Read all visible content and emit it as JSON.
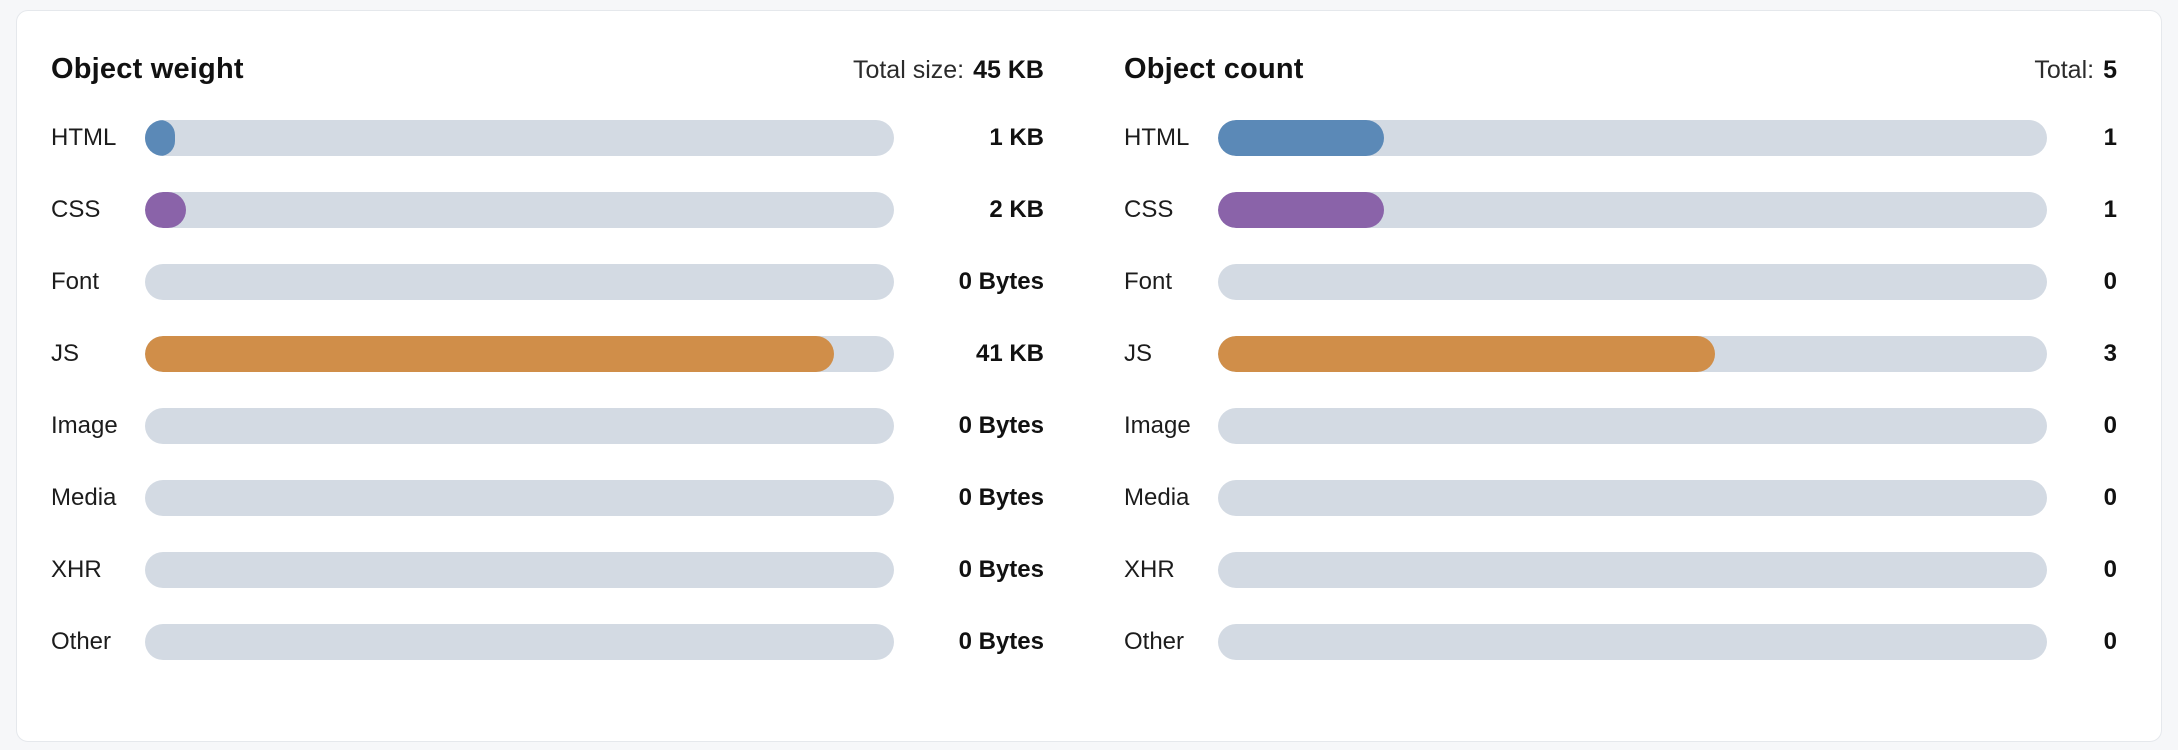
{
  "colors": {
    "html_blue": "#5b89b7",
    "css_purple": "#8a63a9",
    "js_orange": "#d08e49",
    "bar_track": "#d3dae3",
    "card_background": "#ffffff",
    "card_border": "#e5e8ec",
    "page_background": "#f6f7f9",
    "text": "#111111"
  },
  "chart_data": [
    {
      "type": "bar",
      "title": "Object weight",
      "total_label": "Total size:",
      "total_value": "45 KB",
      "categories": [
        "HTML",
        "CSS",
        "Font",
        "JS",
        "Image",
        "Media",
        "XHR",
        "Other"
      ],
      "values_kb": [
        1,
        2,
        0,
        41,
        0,
        0,
        0,
        0
      ],
      "value_labels": [
        "1 KB",
        "2 KB",
        "0 Bytes",
        "41 KB",
        "0 Bytes",
        "0 Bytes",
        "0 Bytes",
        "0 Bytes"
      ],
      "percents": [
        4,
        5.5,
        0,
        92,
        0,
        0,
        0,
        0
      ],
      "bar_colors": [
        "#5b89b7",
        "#8a63a9",
        null,
        "#d08e49",
        null,
        null,
        null,
        null
      ],
      "track_color": "#d3dae3",
      "orientation": "horizontal",
      "grid": false,
      "legend": "none"
    },
    {
      "type": "bar",
      "title": "Object count",
      "total_label": "Total:",
      "total_value": "5",
      "categories": [
        "HTML",
        "CSS",
        "Font",
        "JS",
        "Image",
        "Media",
        "XHR",
        "Other"
      ],
      "values": [
        1,
        1,
        0,
        3,
        0,
        0,
        0,
        0
      ],
      "value_labels": [
        "1",
        "1",
        "0",
        "3",
        "0",
        "0",
        "0",
        "0"
      ],
      "percents": [
        20,
        20,
        0,
        60,
        0,
        0,
        0,
        0
      ],
      "bar_colors": [
        "#5b89b7",
        "#8a63a9",
        null,
        "#d08e49",
        null,
        null,
        null,
        null
      ],
      "track_color": "#d3dae3",
      "orientation": "horizontal",
      "grid": false,
      "legend": "none"
    }
  ]
}
